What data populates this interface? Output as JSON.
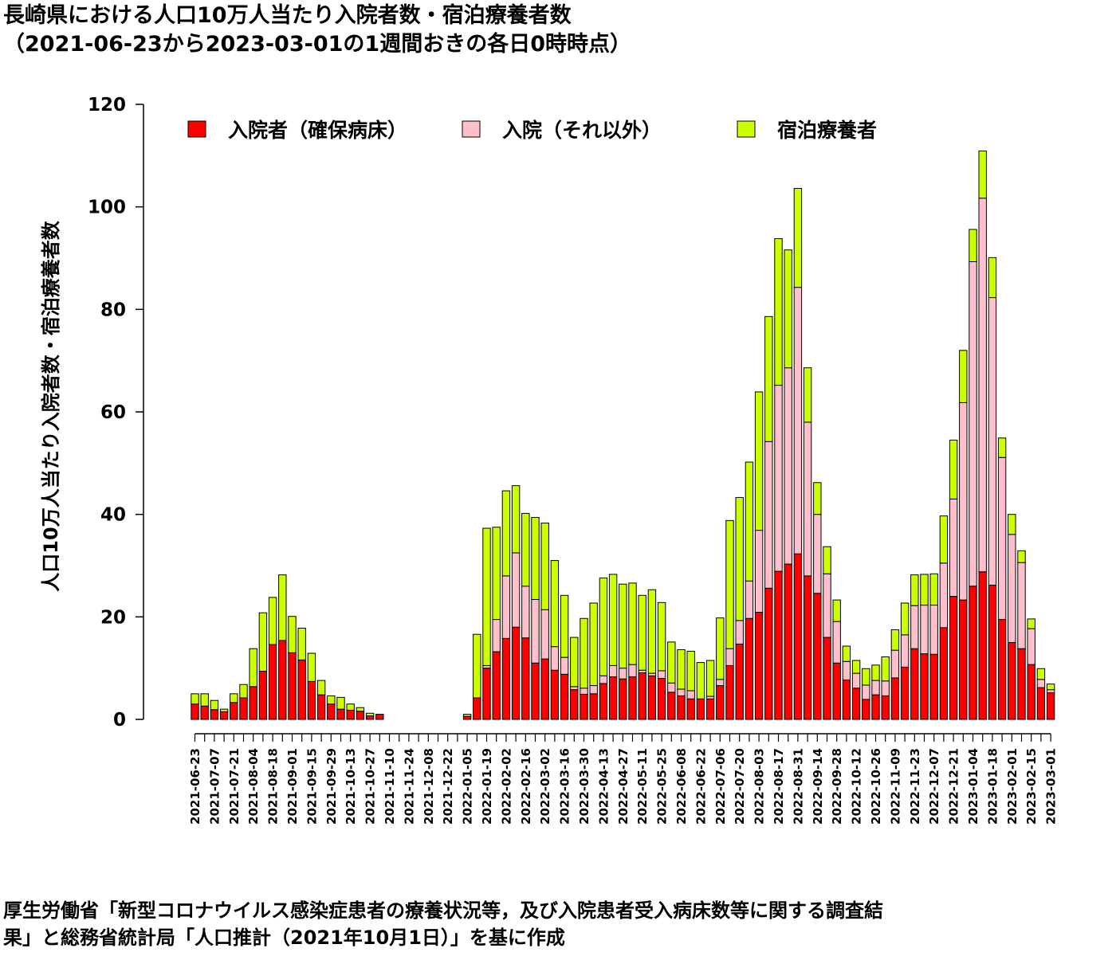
{
  "title_line1": "長崎県における人口10万人当たり入院者数・宿泊療養者数",
  "title_line2": "（2021-06-23から2023-03-01の1週間おきの各日0時時点）",
  "source_line1": "厚生労働省「新型コロナウイルス感染症患者の療養状況等，及び入院患者受入病床数等に関する調査結",
  "source_line2": "果」と総務省統計局「人口推計（2021年10月1日）」を基に作成",
  "chart_data": {
    "type": "bar",
    "stacked": true,
    "ylabel": "人口10万人当たり入院者数・宿泊療養者数",
    "xlabel": "",
    "ylim": [
      0,
      120
    ],
    "yticks": [
      0,
      20,
      40,
      60,
      80,
      100,
      120
    ],
    "legend_position": "top",
    "categories": [
      "2021-06-23",
      "2021-06-30",
      "2021-07-07",
      "2021-07-14",
      "2021-07-21",
      "2021-07-28",
      "2021-08-04",
      "2021-08-11",
      "2021-08-18",
      "2021-08-25",
      "2021-09-01",
      "2021-09-08",
      "2021-09-15",
      "2021-09-22",
      "2021-09-29",
      "2021-10-06",
      "2021-10-13",
      "2021-10-20",
      "2021-10-27",
      "2021-11-03",
      "2021-11-10",
      "2021-11-17",
      "2021-11-24",
      "2021-12-01",
      "2021-12-08",
      "2021-12-15",
      "2021-12-22",
      "2021-12-29",
      "2022-01-05",
      "2022-01-12",
      "2022-01-19",
      "2022-01-26",
      "2022-02-02",
      "2022-02-09",
      "2022-02-16",
      "2022-02-23",
      "2022-03-02",
      "2022-03-09",
      "2022-03-16",
      "2022-03-23",
      "2022-03-30",
      "2022-04-06",
      "2022-04-13",
      "2022-04-20",
      "2022-04-27",
      "2022-05-04",
      "2022-05-11",
      "2022-05-18",
      "2022-05-25",
      "2022-06-01",
      "2022-06-08",
      "2022-06-15",
      "2022-06-22",
      "2022-06-29",
      "2022-07-06",
      "2022-07-13",
      "2022-07-20",
      "2022-07-27",
      "2022-08-03",
      "2022-08-10",
      "2022-08-17",
      "2022-08-24",
      "2022-08-31",
      "2022-09-07",
      "2022-09-14",
      "2022-09-21",
      "2022-09-28",
      "2022-10-05",
      "2022-10-12",
      "2022-10-19",
      "2022-10-26",
      "2022-11-02",
      "2022-11-09",
      "2022-11-16",
      "2022-11-23",
      "2022-11-30",
      "2022-12-07",
      "2022-12-14",
      "2022-12-21",
      "2022-12-28",
      "2023-01-04",
      "2023-01-11",
      "2023-01-18",
      "2023-01-25",
      "2023-02-01",
      "2023-02-08",
      "2023-02-15",
      "2023-02-22",
      "2023-03-01"
    ],
    "tick_labels": [
      "2021-06-23",
      "2021-07-07",
      "2021-07-21",
      "2021-08-04",
      "2021-08-18",
      "2021-09-01",
      "2021-09-15",
      "2021-09-29",
      "2021-10-13",
      "2021-10-27",
      "2021-11-10",
      "2021-11-24",
      "2021-12-08",
      "2021-12-22",
      "2022-01-05",
      "2022-01-19",
      "2022-02-02",
      "2022-02-16",
      "2022-03-02",
      "2022-03-16",
      "2022-03-30",
      "2022-04-13",
      "2022-04-27",
      "2022-05-11",
      "2022-05-25",
      "2022-06-08",
      "2022-06-22",
      "2022-07-06",
      "2022-07-20",
      "2022-08-03",
      "2022-08-17",
      "2022-08-31",
      "2022-09-14",
      "2022-09-28",
      "2022-10-12",
      "2022-10-26",
      "2022-11-09",
      "2022-11-23",
      "2022-12-07",
      "2022-12-21",
      "2023-01-04",
      "2023-01-18",
      "2023-02-01",
      "2023-02-15",
      "2023-03-01"
    ],
    "series": [
      {
        "name": "入院者（確保病床）",
        "color": "#ff0000",
        "values": [
          3.0,
          2.6,
          1.9,
          1.5,
          3.3,
          4.2,
          6.4,
          9.4,
          14.6,
          15.4,
          13.0,
          11.6,
          7.4,
          4.8,
          3.0,
          2.0,
          1.8,
          1.6,
          0.7,
          1.0,
          0,
          0,
          0,
          0,
          0,
          0,
          0,
          0,
          0.6,
          4.2,
          10.0,
          13.2,
          15.8,
          18.0,
          15.9,
          11.0,
          11.8,
          9.6,
          8.8,
          5.8,
          4.9,
          5.0,
          7.0,
          8.3,
          7.9,
          8.3,
          9.1,
          8.5,
          8.0,
          5.3,
          4.6,
          4.0,
          4.0,
          4.0,
          6.6,
          10.5,
          14.7,
          19.7,
          20.9,
          25.6,
          28.9,
          30.3,
          32.3,
          28.0,
          24.6,
          16.0,
          11.0,
          7.7,
          6.1,
          3.9,
          4.8,
          4.6,
          8.1,
          10.2,
          13.8,
          12.8,
          12.7,
          17.9,
          24.0,
          23.3,
          26.0,
          28.8,
          26.2,
          19.5,
          15.0,
          13.8,
          10.7,
          6.2,
          5.2
        ]
      },
      {
        "name": "入院（それ以外）",
        "color": "#ffc0cb",
        "values": [
          0,
          0,
          0,
          0,
          0,
          0,
          0,
          0,
          0,
          0,
          0,
          0,
          0,
          0,
          0,
          0,
          0,
          0,
          0,
          0,
          0,
          0,
          0,
          0,
          0,
          0,
          0,
          0,
          0,
          0,
          0.5,
          6.3,
          12.2,
          14.5,
          10.1,
          12.4,
          9.6,
          4.6,
          3.3,
          0.6,
          1.2,
          1.6,
          1.5,
          2.2,
          2.1,
          2.4,
          0.5,
          0.5,
          1.5,
          1.8,
          1.3,
          1.6,
          0,
          0.5,
          1.2,
          3.3,
          4.6,
          7.3,
          16.0,
          28.6,
          36.3,
          38.3,
          52.0,
          30.0,
          15.4,
          12.4,
          8.1,
          3.6,
          2.9,
          2.8,
          2.8,
          2.9,
          5.4,
          6.3,
          8.4,
          9.5,
          9.6,
          12.6,
          19.0,
          38.5,
          63.3,
          72.9,
          56.1,
          31.6,
          21.1,
          16.8,
          7.0,
          1.6,
          0.6
        ]
      },
      {
        "name": "宿泊療養者",
        "color": "#ccff00",
        "values": [
          2.0,
          2.4,
          1.8,
          0.5,
          1.7,
          2.6,
          7.4,
          11.4,
          9.2,
          12.8,
          7.1,
          6.2,
          5.5,
          2.8,
          1.6,
          2.3,
          1.2,
          0.7,
          0.5,
          0,
          0,
          0,
          0,
          0,
          0,
          0,
          0,
          0,
          0.4,
          12.4,
          26.8,
          18.0,
          16.6,
          13.1,
          14.2,
          16.0,
          16.9,
          16.8,
          12.1,
          9.6,
          13.6,
          16.1,
          19.1,
          17.8,
          16.4,
          15.9,
          14.6,
          16.3,
          13.3,
          8.0,
          7.7,
          7.7,
          7.1,
          7.0,
          12.0,
          25.0,
          24.0,
          23.2,
          27.0,
          24.4,
          28.6,
          23.0,
          19.3,
          10.6,
          6.2,
          5.3,
          4.2,
          3.0,
          2.5,
          3.2,
          3.0,
          4.7,
          4.0,
          6.2,
          6.0,
          6.0,
          6.1,
          9.2,
          11.5,
          10.2,
          6.3,
          9.2,
          7.8,
          3.8,
          3.9,
          2.3,
          1.9,
          2.1,
          1.1
        ]
      }
    ]
  }
}
